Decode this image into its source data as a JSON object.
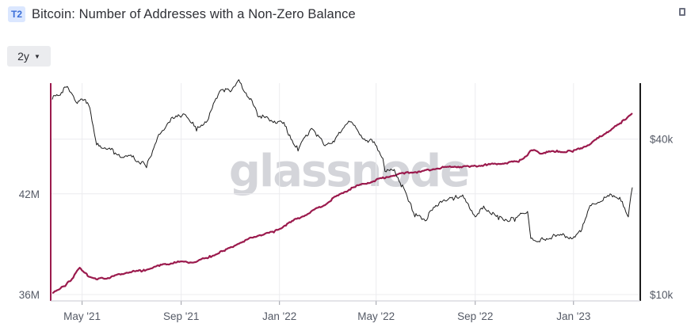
{
  "header": {
    "badge": "T2",
    "title": "Bitcoin: Number of Addresses with a Non-Zero Balance"
  },
  "controls": {
    "range_label": "2y",
    "caret": "▼"
  },
  "watermark": "glassnode",
  "icons": {
    "pin": "pin-icon",
    "caret": "chevron-down-icon"
  },
  "colors": {
    "addresses": "#9b1a4d",
    "price": "#1c1c1c",
    "left_axis": "#9b1a4d",
    "right_axis": "#1c1c1c"
  },
  "chart_data": {
    "type": "line",
    "title": "Bitcoin: Number of Addresses with a Non-Zero Balance",
    "x_ticks": [
      "May '21",
      "Sep '21",
      "Jan '22",
      "May '22",
      "Sep '22",
      "Jan '23"
    ],
    "left_axis": {
      "ticks": [
        {
          "value": 36,
          "label": "36M"
        },
        {
          "value": 42,
          "label": "42M"
        }
      ],
      "range": [
        36,
        48.5
      ]
    },
    "right_axis": {
      "ticks": [
        {
          "value": 10000,
          "label": "$10k"
        },
        {
          "value": 40000,
          "label": "$40k"
        }
      ],
      "scale": "log",
      "range": [
        10000,
        65000
      ]
    },
    "grid": true,
    "x_range": [
      "2021-03-25",
      "2023-03-15"
    ],
    "series": [
      {
        "axis": "left",
        "x": [
          "2021-03-25",
          "2021-04-10",
          "2021-04-20",
          "2021-04-28",
          "2021-05-08",
          "2021-05-20",
          "2021-06-05",
          "2021-06-25",
          "2021-07-15",
          "2021-08-05",
          "2021-08-25",
          "2021-09-15",
          "2021-10-05",
          "2021-10-25",
          "2021-11-15",
          "2021-12-05",
          "2021-12-25",
          "2022-01-15",
          "2022-02-05",
          "2022-02-25",
          "2022-03-15",
          "2022-04-05",
          "2022-04-25",
          "2022-05-15",
          "2022-06-05",
          "2022-06-25",
          "2022-07-15",
          "2022-08-05",
          "2022-08-25",
          "2022-09-15",
          "2022-10-05",
          "2022-10-25",
          "2022-11-05",
          "2022-11-10",
          "2022-11-20",
          "2022-12-10",
          "2022-12-31",
          "2023-01-20",
          "2023-02-10",
          "2023-03-01",
          "2023-03-15"
        ],
        "values": [
          36.1,
          36.5,
          37.0,
          37.6,
          37.1,
          36.9,
          37.0,
          37.3,
          37.4,
          37.7,
          37.9,
          37.9,
          38.2,
          38.6,
          39.1,
          39.5,
          39.7,
          40.3,
          40.8,
          41.3,
          41.9,
          42.4,
          42.7,
          43.0,
          43.2,
          43.3,
          43.5,
          43.6,
          43.6,
          43.7,
          43.8,
          43.9,
          44.3,
          44.6,
          44.4,
          44.5,
          44.5,
          44.9,
          45.6,
          46.2,
          46.8
        ]
      },
      {
        "axis": "right",
        "x": [
          "2021-03-25",
          "2021-04-01",
          "2021-04-14",
          "2021-04-25",
          "2021-05-05",
          "2021-05-12",
          "2021-05-19",
          "2021-06-01",
          "2021-06-20",
          "2021-07-05",
          "2021-07-20",
          "2021-08-01",
          "2021-08-15",
          "2021-09-05",
          "2021-09-20",
          "2021-10-05",
          "2021-10-20",
          "2021-11-01",
          "2021-11-10",
          "2021-11-25",
          "2021-12-05",
          "2021-12-20",
          "2022-01-05",
          "2022-01-24",
          "2022-02-10",
          "2022-02-25",
          "2022-03-10",
          "2022-03-28",
          "2022-04-15",
          "2022-04-30",
          "2022-05-08",
          "2022-05-12",
          "2022-05-25",
          "2022-06-10",
          "2022-06-18",
          "2022-07-01",
          "2022-07-20",
          "2022-08-05",
          "2022-08-15",
          "2022-09-01",
          "2022-09-13",
          "2022-09-30",
          "2022-10-20",
          "2022-11-05",
          "2022-11-09",
          "2022-11-20",
          "2022-12-10",
          "2022-12-31",
          "2023-01-10",
          "2023-01-20",
          "2023-02-05",
          "2023-02-20",
          "2023-03-01",
          "2023-03-10",
          "2023-03-15"
        ],
        "values": [
          57000,
          59000,
          63000,
          55000,
          57000,
          50000,
          38000,
          36500,
          34000,
          33500,
          31000,
          39000,
          46000,
          50000,
          43000,
          48000,
          62000,
          61000,
          67000,
          57000,
          49000,
          47000,
          46000,
          36000,
          44000,
          38000,
          39000,
          47000,
          40000,
          38000,
          34000,
          30000,
          29500,
          23000,
          20000,
          19300,
          23000,
          23200,
          24000,
          20000,
          21500,
          19500,
          19200,
          21000,
          16500,
          16000,
          16800,
          16500,
          17500,
          21500,
          23000,
          24200,
          23000,
          20000,
          26000
        ]
      }
    ]
  }
}
